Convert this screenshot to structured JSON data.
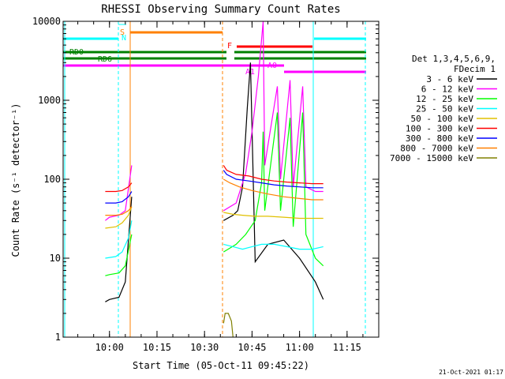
{
  "chart_data": {
    "type": "line",
    "title": "RHESSI Observing Summary Count Rates",
    "xlabel": "Start Time (05-Oct-11 09:45:22)",
    "ylabel": "Count Rate (s⁻¹ detector⁻¹)",
    "yscale": "log",
    "ylim": [
      1,
      10000
    ],
    "xlim": [
      "09:45:22",
      "11:25:00"
    ],
    "x_tick_labels": [
      "10:00",
      "10:15",
      "10:30",
      "10:45",
      "11:00",
      "11:15"
    ],
    "y_tick_labels": [
      "1",
      "10",
      "100",
      "1000",
      "10000"
    ],
    "legend": {
      "header1": "Det 1,3,4,5,6,9,",
      "header2": "FDecim 1",
      "placement": "right"
    },
    "series": [
      {
        "name": "3 - 6 keV",
        "color": "#000000",
        "segments": [
          [
            [
              "09:58:40",
              2.8
            ],
            [
              "10:00:00",
              3.0
            ],
            [
              "10:03:00",
              3.2
            ],
            [
              "10:05:00",
              5
            ],
            [
              "10:07:00",
              60
            ]
          ],
          [
            [
              "10:36:00",
              30
            ],
            [
              "10:39:00",
              35
            ],
            [
              "10:40:30",
              40
            ],
            [
              "10:42:00",
              80
            ],
            [
              "10:43:30",
              800
            ],
            [
              "10:44:30",
              3000
            ],
            [
              "10:46:00",
              9
            ],
            [
              "10:50:00",
              15
            ],
            [
              "10:55:00",
              17
            ],
            [
              "11:00:00",
              10
            ],
            [
              "11:05:00",
              5
            ],
            [
              "11:07:30",
              3
            ]
          ]
        ]
      },
      {
        "name": "6 - 12 keV",
        "color": "#ff00ff",
        "segments": [
          [
            [
              "09:58:40",
              30
            ],
            [
              "10:00:00",
              33
            ],
            [
              "10:03:00",
              35
            ],
            [
              "10:05:00",
              40
            ],
            [
              "10:07:00",
              150
            ]
          ],
          [
            [
              "10:36:00",
              40
            ],
            [
              "10:40:00",
              50
            ],
            [
              "10:43:00",
              120
            ],
            [
              "10:45:00",
              400
            ],
            [
              "10:47:00",
              2000
            ],
            [
              "10:48:30",
              10000
            ],
            [
              "10:49:00",
              150
            ],
            [
              "10:53:00",
              1500
            ],
            [
              "10:54:00",
              100
            ],
            [
              "10:57:00",
              1800
            ],
            [
              "10:58:00",
              80
            ],
            [
              "11:01:00",
              1500
            ],
            [
              "11:02:00",
              80
            ],
            [
              "11:05:00",
              70
            ],
            [
              "11:07:30",
              70
            ]
          ]
        ]
      },
      {
        "name": "12 - 25 keV",
        "color": "#00ff00",
        "segments": [
          [
            [
              "09:58:40",
              6
            ],
            [
              "10:00:00",
              6.2
            ],
            [
              "10:03:00",
              6.5
            ],
            [
              "10:05:00",
              8
            ],
            [
              "10:07:00",
              20
            ]
          ],
          [
            [
              "10:36:00",
              12
            ],
            [
              "10:40:00",
              15
            ],
            [
              "10:43:00",
              20
            ],
            [
              "10:46:00",
              30
            ],
            [
              "10:48:00",
              90
            ],
            [
              "10:48:30",
              400
            ],
            [
              "10:49:00",
              40
            ],
            [
              "10:53:00",
              700
            ],
            [
              "10:54:00",
              40
            ],
            [
              "10:57:00",
              600
            ],
            [
              "10:58:00",
              25
            ],
            [
              "11:01:00",
              700
            ],
            [
              "11:02:00",
              20
            ],
            [
              "11:05:00",
              10
            ],
            [
              "11:07:30",
              8
            ]
          ]
        ]
      },
      {
        "name": "25 - 50 keV",
        "color": "#00ffff",
        "segments": [
          [
            [
              "09:58:40",
              10
            ],
            [
              "10:02:00",
              10.5
            ],
            [
              "10:04:00",
              12
            ],
            [
              "10:06:00",
              18
            ],
            [
              "10:07:00",
              30
            ]
          ],
          [
            [
              "10:36:00",
              15
            ],
            [
              "10:39:00",
              14
            ],
            [
              "10:42:00",
              13
            ],
            [
              "10:45:00",
              14
            ],
            [
              "10:48:00",
              15
            ],
            [
              "10:52:00",
              15
            ],
            [
              "10:56:00",
              14
            ],
            [
              "11:00:00",
              13
            ],
            [
              "11:04:00",
              13
            ],
            [
              "11:07:30",
              14
            ]
          ]
        ]
      },
      {
        "name": "50 - 100 keV",
        "color": "#e0c000",
        "segments": [
          [
            [
              "09:58:40",
              24
            ],
            [
              "10:02:00",
              25
            ],
            [
              "10:04:00",
              28
            ],
            [
              "10:06:00",
              35
            ],
            [
              "10:07:00",
              45
            ]
          ],
          [
            [
              "10:36:00",
              38
            ],
            [
              "10:39:00",
              36
            ],
            [
              "10:42:00",
              35
            ],
            [
              "10:46:00",
              34
            ],
            [
              "10:50:00",
              34
            ],
            [
              "10:55:00",
              33
            ],
            [
              "11:00:00",
              32
            ],
            [
              "11:04:00",
              32
            ],
            [
              "11:07:30",
              32
            ]
          ]
        ]
      },
      {
        "name": "100 - 300 keV",
        "color": "#ff0000",
        "segments": [
          [
            [
              "09:58:40",
              70
            ],
            [
              "10:02:00",
              70
            ],
            [
              "10:04:00",
              72
            ],
            [
              "10:06:00",
              80
            ],
            [
              "10:07:00",
              90
            ]
          ],
          [
            [
              "10:36:00",
              150
            ],
            [
              "10:37:00",
              130
            ],
            [
              "10:40:00",
              115
            ],
            [
              "10:44:00",
              110
            ],
            [
              "10:48:00",
              100
            ],
            [
              "10:52:00",
              95
            ],
            [
              "10:56:00",
              92
            ],
            [
              "11:00:00",
              90
            ],
            [
              "11:04:00",
              88
            ],
            [
              "11:07:30",
              88
            ]
          ]
        ]
      },
      {
        "name": "300 - 800 keV",
        "color": "#0000ff",
        "segments": [
          [
            [
              "09:58:40",
              50
            ],
            [
              "10:02:00",
              50
            ],
            [
              "10:04:00",
              52
            ],
            [
              "10:06:00",
              60
            ],
            [
              "10:07:00",
              70
            ]
          ],
          [
            [
              "10:36:00",
              130
            ],
            [
              "10:37:00",
              115
            ],
            [
              "10:40:00",
              100
            ],
            [
              "10:44:00",
              95
            ],
            [
              "10:48:00",
              90
            ],
            [
              "10:52:00",
              85
            ],
            [
              "10:56:00",
              82
            ],
            [
              "11:00:00",
              80
            ],
            [
              "11:04:00",
              78
            ],
            [
              "11:07:30",
              78
            ]
          ]
        ]
      },
      {
        "name": "800 - 7000 keV",
        "color": "#ff8000",
        "segments": [
          [
            [
              "09:58:40",
              35
            ],
            [
              "10:02:00",
              35
            ],
            [
              "10:04:00",
              36
            ],
            [
              "10:06:00",
              40
            ],
            [
              "10:07:00",
              45
            ]
          ],
          [
            [
              "10:36:00",
              100
            ],
            [
              "10:38:00",
              90
            ],
            [
              "10:41:00",
              80
            ],
            [
              "10:45:00",
              72
            ],
            [
              "10:50:00",
              65
            ],
            [
              "10:55:00",
              60
            ],
            [
              "11:00:00",
              57
            ],
            [
              "11:04:00",
              55
            ],
            [
              "11:07:30",
              55
            ]
          ]
        ]
      },
      {
        "name": "7000 - 15000 keV",
        "color": "#808000",
        "segments": [
          [
            [
              "10:36:00",
              1.5
            ],
            [
              "10:36:30",
              2
            ],
            [
              "10:37:30",
              2
            ],
            [
              "10:38:30",
              1.6
            ],
            [
              "10:39:00",
              1
            ]
          ]
        ]
      }
    ],
    "annotations": [
      {
        "label": "S",
        "color": "#ff8000"
      },
      {
        "label": "N",
        "color": "#00ffff"
      },
      {
        "label": "F",
        "color": "#ff0000"
      },
      {
        "label": "RD0",
        "color": "#008000"
      },
      {
        "label": "RD6",
        "color": "#008000"
      },
      {
        "label": "A1",
        "color": "#ff00ff"
      },
      {
        "label": "A0",
        "color": "#ff00ff"
      }
    ],
    "timestamp": "21-Oct-2021 01:17"
  }
}
